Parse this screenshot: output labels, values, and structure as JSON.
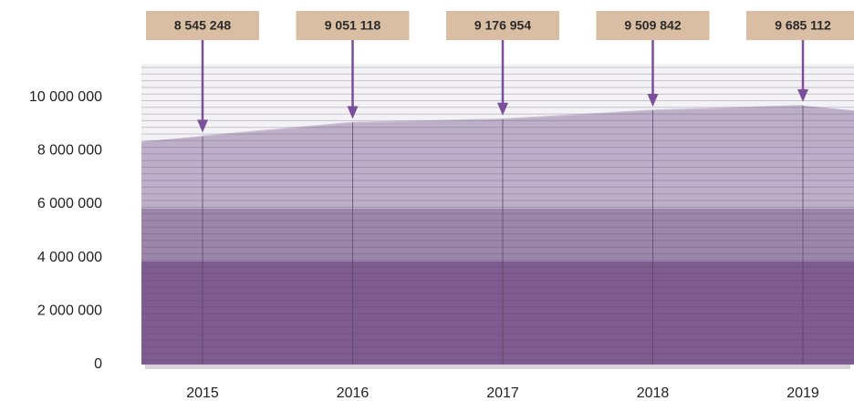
{
  "chart_data": {
    "type": "area",
    "categories": [
      "2015",
      "2016",
      "2017",
      "2018",
      "2019"
    ],
    "values": [
      8545248,
      9051118,
      9176954,
      9509842,
      9685112
    ],
    "value_labels": [
      "8 545 248",
      "9 051 118",
      "9 176 954",
      "9 509 842",
      "9 685 112"
    ],
    "color": "#7b4f9b",
    "label_color": "#d9bea3",
    "ylim": [
      0,
      11250000
    ],
    "yticks": [
      0,
      {
        "value": 2000000,
        "label": "2 000 000"
      },
      {
        "value": 4000000,
        "label": "4 000 000"
      },
      {
        "value": 6000000,
        "label": "6 000 000"
      },
      {
        "value": 8000000,
        "label": "8 000 000"
      },
      {
        "value": 10000000,
        "label": "10 000 000"
      }
    ]
  }
}
